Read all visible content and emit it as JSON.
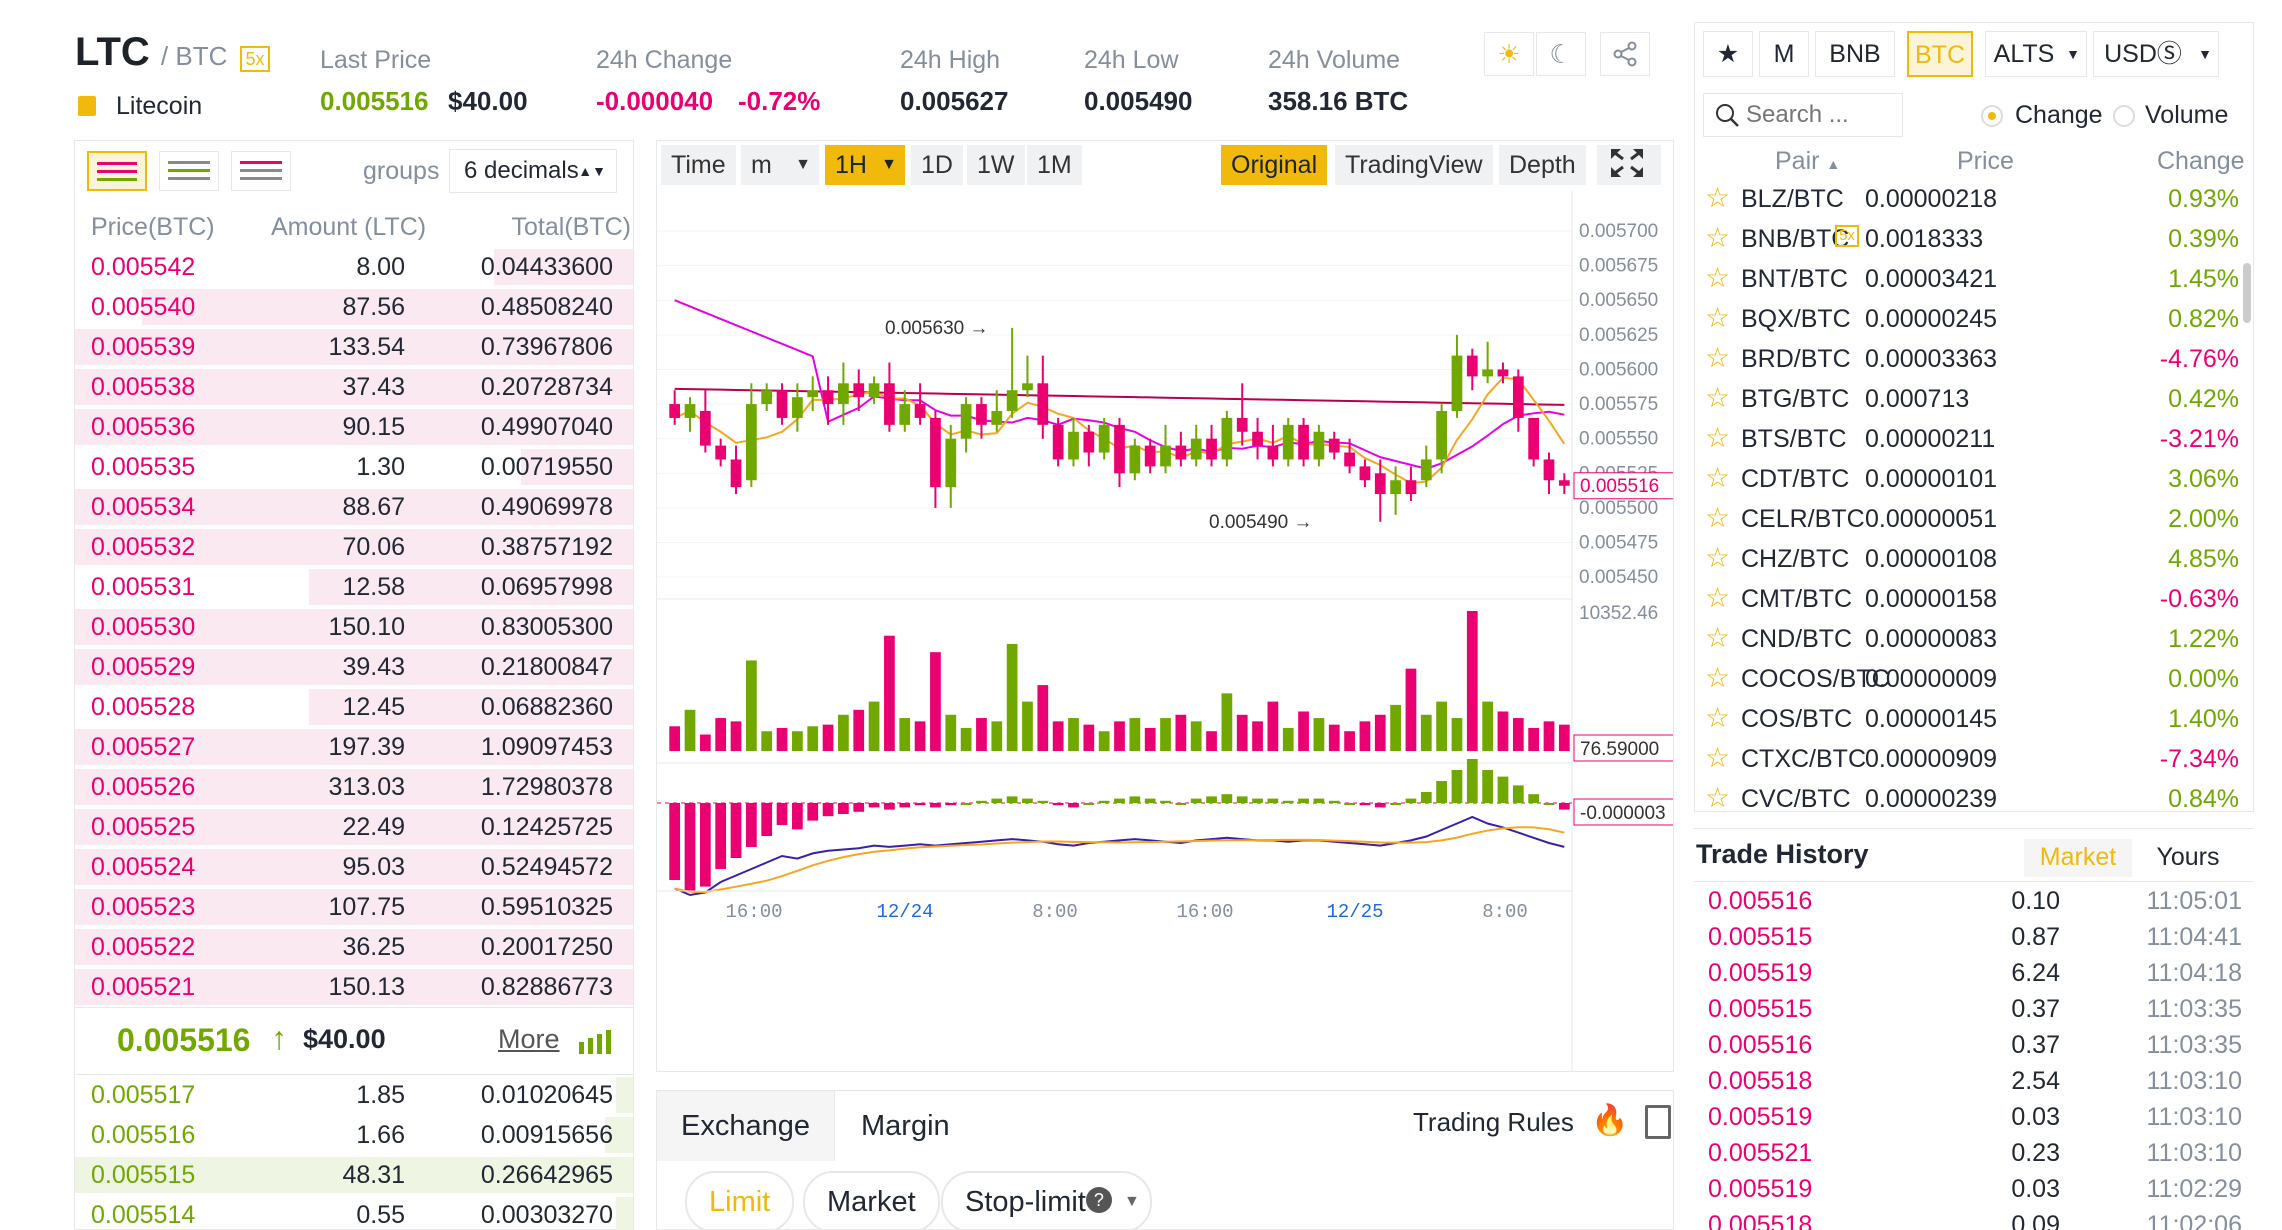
{
  "header": {
    "symbol": "LTC",
    "quote": "/ BTC",
    "leverage": "5x",
    "coin_name": "Litecoin",
    "last_price_label": "Last Price",
    "last_price": "0.005516",
    "last_price_usd": "$40.00",
    "change_label": "24h Change",
    "change_value": "-0.000040",
    "change_pct": "-0.72%",
    "high_label": "24h High",
    "high_value": "0.005627",
    "low_label": "24h Low",
    "low_value": "0.005490",
    "volume_label": "24h Volume",
    "volume_value": "358.16 BTC",
    "icons": [
      "sun-icon",
      "moon-icon",
      "share-icon"
    ]
  },
  "orderbook": {
    "groups_label": "groups",
    "decimals": "6 decimals",
    "col_price": "Price(BTC)",
    "col_amount": "Amount (LTC)",
    "col_total": "Total(BTC)",
    "asks": [
      {
        "price": "0.005542",
        "amount": "8.00",
        "total": "0.04433600",
        "depth": 0.25
      },
      {
        "price": "0.005540",
        "amount": "87.56",
        "total": "0.48508240",
        "depth": 0.88
      },
      {
        "price": "0.005539",
        "amount": "133.54",
        "total": "0.73967806",
        "depth": 1.0
      },
      {
        "price": "0.005538",
        "amount": "37.43",
        "total": "0.20728734",
        "depth": 1.0
      },
      {
        "price": "0.005536",
        "amount": "90.15",
        "total": "0.49907040",
        "depth": 1.0
      },
      {
        "price": "0.005535",
        "amount": "1.30",
        "total": "0.00719550",
        "depth": 0.2
      },
      {
        "price": "0.005534",
        "amount": "88.67",
        "total": "0.49069978",
        "depth": 1.0
      },
      {
        "price": "0.005532",
        "amount": "70.06",
        "total": "0.38757192",
        "depth": 1.0
      },
      {
        "price": "0.005531",
        "amount": "12.58",
        "total": "0.06957998",
        "depth": 0.58
      },
      {
        "price": "0.005530",
        "amount": "150.10",
        "total": "0.83005300",
        "depth": 1.0
      },
      {
        "price": "0.005529",
        "amount": "39.43",
        "total": "0.21800847",
        "depth": 1.0
      },
      {
        "price": "0.005528",
        "amount": "12.45",
        "total": "0.06882360",
        "depth": 0.58
      },
      {
        "price": "0.005527",
        "amount": "197.39",
        "total": "1.09097453",
        "depth": 1.0
      },
      {
        "price": "0.005526",
        "amount": "313.03",
        "total": "1.72980378",
        "depth": 1.0
      },
      {
        "price": "0.005525",
        "amount": "22.49",
        "total": "0.12425725",
        "depth": 1.0
      },
      {
        "price": "0.005524",
        "amount": "95.03",
        "total": "0.52494572",
        "depth": 1.0
      },
      {
        "price": "0.005523",
        "amount": "107.75",
        "total": "0.59510325",
        "depth": 1.0
      },
      {
        "price": "0.005522",
        "amount": "36.25",
        "total": "0.20017250",
        "depth": 1.0
      },
      {
        "price": "0.005521",
        "amount": "150.13",
        "total": "0.82886773",
        "depth": 1.0
      }
    ],
    "mid_price": "0.005516",
    "mid_arrow": "↑",
    "mid_usd": "$40.00",
    "more_label": "More",
    "bids": [
      {
        "price": "0.005517",
        "amount": "1.85",
        "total": "0.01020645",
        "depth": 0.03
      },
      {
        "price": "0.005516",
        "amount": "1.66",
        "total": "0.00915656",
        "depth": 0.05
      },
      {
        "price": "0.005515",
        "amount": "48.31",
        "total": "0.26642965",
        "depth": 1.0
      },
      {
        "price": "0.005514",
        "amount": "0.55",
        "total": "0.00303270",
        "depth": 0.03
      }
    ]
  },
  "chart": {
    "toolbar": {
      "time": "Time",
      "minute": "m",
      "interval": "1H",
      "d": "1D",
      "w": "1W",
      "mo": "1M",
      "original": "Original",
      "tradingview": "TradingView",
      "depth": "Depth"
    },
    "price_ticks": [
      "0.005700",
      "0.005675",
      "0.005650",
      "0.005625",
      "0.005600",
      "0.005575",
      "0.005550",
      "0.005525",
      "0.005500",
      "0.005475",
      "0.005450"
    ],
    "price_marker": "0.005516",
    "high_annotation": "0.005630",
    "low_annotation": "0.005490",
    "volume_max": "10352.46",
    "volume_marker": "76.59000",
    "macd_marker": "-0.000003",
    "x_ticks": [
      "16:00",
      "12/24",
      "8:00",
      "16:00",
      "12/25",
      "8:00"
    ],
    "accent": "#f0b90b",
    "up_color": "#70a800",
    "down_color": "#ea0070"
  },
  "chart_data": {
    "type": "candlestick",
    "ylim": [
      0.00544,
      0.0057
    ],
    "candles": [
      [
        0.005575,
        0.005565,
        0.005585,
        0.00556
      ],
      [
        0.005565,
        0.005575,
        0.00558,
        0.005555
      ],
      [
        0.00557,
        0.005545,
        0.005585,
        0.00554
      ],
      [
        0.005545,
        0.005535,
        0.00555,
        0.00553
      ],
      [
        0.005535,
        0.005515,
        0.005545,
        0.00551
      ],
      [
        0.00552,
        0.005575,
        0.00559,
        0.005515
      ],
      [
        0.005575,
        0.005585,
        0.00559,
        0.00557
      ],
      [
        0.005585,
        0.005565,
        0.00559,
        0.00556
      ],
      [
        0.005565,
        0.00558,
        0.00559,
        0.005555
      ],
      [
        0.00558,
        0.005585,
        0.005595,
        0.00557
      ],
      [
        0.005585,
        0.005575,
        0.005595,
        0.00556
      ],
      [
        0.005575,
        0.00559,
        0.005605,
        0.00556
      ],
      [
        0.00559,
        0.00558,
        0.0056,
        0.00557
      ],
      [
        0.00558,
        0.00559,
        0.005595,
        0.005575
      ],
      [
        0.00559,
        0.00556,
        0.005605,
        0.005555
      ],
      [
        0.00556,
        0.005575,
        0.005585,
        0.005555
      ],
      [
        0.005575,
        0.005565,
        0.00559,
        0.00556
      ],
      [
        0.005565,
        0.005515,
        0.00557,
        0.0055
      ],
      [
        0.005515,
        0.00555,
        0.00556,
        0.0055
      ],
      [
        0.00555,
        0.005575,
        0.00558,
        0.00554
      ],
      [
        0.005575,
        0.00556,
        0.00558,
        0.00555
      ],
      [
        0.00556,
        0.00557,
        0.005585,
        0.005555
      ],
      [
        0.00557,
        0.005585,
        0.00563,
        0.005565
      ],
      [
        0.005585,
        0.00559,
        0.00561,
        0.00558
      ],
      [
        0.00559,
        0.00556,
        0.00561,
        0.00555
      ],
      [
        0.00556,
        0.005535,
        0.005565,
        0.00553
      ],
      [
        0.005535,
        0.005555,
        0.005565,
        0.00553
      ],
      [
        0.005555,
        0.00554,
        0.00556,
        0.00553
      ],
      [
        0.00554,
        0.00556,
        0.005565,
        0.005535
      ],
      [
        0.00556,
        0.005525,
        0.005565,
        0.005515
      ],
      [
        0.005525,
        0.005545,
        0.00555,
        0.00552
      ],
      [
        0.005545,
        0.00553,
        0.00555,
        0.005525
      ],
      [
        0.00553,
        0.005545,
        0.00556,
        0.005525
      ],
      [
        0.005545,
        0.005535,
        0.005555,
        0.00553
      ],
      [
        0.005535,
        0.00555,
        0.00556,
        0.00553
      ],
      [
        0.00555,
        0.005535,
        0.00556,
        0.00553
      ],
      [
        0.005535,
        0.005565,
        0.00557,
        0.00553
      ],
      [
        0.005565,
        0.005555,
        0.00559,
        0.005545
      ],
      [
        0.005555,
        0.005545,
        0.005565,
        0.005535
      ],
      [
        0.005545,
        0.005535,
        0.00556,
        0.00553
      ],
      [
        0.005535,
        0.00556,
        0.005565,
        0.00553
      ],
      [
        0.00556,
        0.005535,
        0.005565,
        0.00553
      ],
      [
        0.005535,
        0.005555,
        0.00556,
        0.00553
      ],
      [
        0.00555,
        0.00554,
        0.005555,
        0.005535
      ],
      [
        0.00554,
        0.00553,
        0.00555,
        0.005525
      ],
      [
        0.00553,
        0.00552,
        0.005535,
        0.005515
      ],
      [
        0.005525,
        0.00551,
        0.005535,
        0.00549
      ],
      [
        0.00551,
        0.00552,
        0.00553,
        0.005495
      ],
      [
        0.00552,
        0.00551,
        0.00553,
        0.005505
      ],
      [
        0.00552,
        0.005535,
        0.005545,
        0.005515
      ],
      [
        0.005535,
        0.00557,
        0.005575,
        0.005525
      ],
      [
        0.00557,
        0.00561,
        0.005625,
        0.005565
      ],
      [
        0.00561,
        0.005595,
        0.005615,
        0.005585
      ],
      [
        0.005595,
        0.0056,
        0.00562,
        0.00559
      ],
      [
        0.0056,
        0.005595,
        0.005605,
        0.00559
      ],
      [
        0.005595,
        0.005565,
        0.0056,
        0.005555
      ],
      [
        0.005565,
        0.005535,
        0.005565,
        0.00553
      ],
      [
        0.005535,
        0.00552,
        0.00554,
        0.00551
      ],
      [
        0.00552,
        0.005516,
        0.005525,
        0.00551
      ]
    ],
    "volumes": [
      15,
      25,
      10,
      20,
      18,
      55,
      12,
      14,
      12,
      15,
      16,
      22,
      25,
      30,
      70,
      20,
      18,
      60,
      22,
      14,
      20,
      18,
      65,
      30,
      40,
      18,
      20,
      16,
      12,
      18,
      20,
      14,
      20,
      22,
      18,
      12,
      35,
      22,
      18,
      30,
      14,
      24,
      20,
      16,
      12,
      18,
      22,
      28,
      50,
      22,
      30,
      20,
      85,
      30,
      24,
      20,
      14,
      18,
      16
    ],
    "macd": [
      -35,
      -40,
      -38,
      -30,
      -25,
      -20,
      -15,
      -10,
      -12,
      -8,
      -6,
      -5,
      -4,
      -2,
      -3,
      -2,
      -1,
      -2,
      -1,
      0,
      1,
      2,
      3,
      2,
      1,
      -1,
      -2,
      0,
      1,
      2,
      3,
      2,
      1,
      0,
      2,
      3,
      4,
      3,
      2,
      2,
      1,
      2,
      2,
      1,
      0,
      -1,
      -2,
      0,
      2,
      5,
      10,
      15,
      20,
      15,
      12,
      8,
      4,
      0,
      -3
    ]
  },
  "exchange": {
    "tab_exchange": "Exchange",
    "tab_margin": "Margin",
    "trading_rules": "Trading Rules",
    "order_limit": "Limit",
    "order_market": "Market",
    "order_stop": "Stop-limit"
  },
  "markets": {
    "tab_m": "M",
    "tab_bnb": "BNB",
    "tab_btc": "BTC",
    "tab_alts": "ALTS",
    "tab_usd": "USDⓈ",
    "search_placeholder": "Search ...",
    "radio_change": "Change",
    "radio_volume": "Volume",
    "col_pair": "Pair",
    "col_price": "Price",
    "col_change": "Change",
    "leverage_badge": "5x",
    "rows": [
      {
        "pair": "BLZ/BTC",
        "price": "0.00000218",
        "change": "0.93%",
        "up": true
      },
      {
        "pair": "BNB/BTC",
        "price": "0.0018333",
        "change": "0.39%",
        "up": true,
        "lev": true
      },
      {
        "pair": "BNT/BTC",
        "price": "0.00003421",
        "change": "1.45%",
        "up": true
      },
      {
        "pair": "BQX/BTC",
        "price": "0.00000245",
        "change": "0.82%",
        "up": true
      },
      {
        "pair": "BRD/BTC",
        "price": "0.00003363",
        "change": "-4.76%",
        "up": false
      },
      {
        "pair": "BTG/BTC",
        "price": "0.000713",
        "change": "0.42%",
        "up": true
      },
      {
        "pair": "BTS/BTC",
        "price": "0.00000211",
        "change": "-3.21%",
        "up": false
      },
      {
        "pair": "CDT/BTC",
        "price": "0.00000101",
        "change": "3.06%",
        "up": true
      },
      {
        "pair": "CELR/BTC",
        "price": "0.00000051",
        "change": "2.00%",
        "up": true
      },
      {
        "pair": "CHZ/BTC",
        "price": "0.00000108",
        "change": "4.85%",
        "up": true
      },
      {
        "pair": "CMT/BTC",
        "price": "0.00000158",
        "change": "-0.63%",
        "up": false
      },
      {
        "pair": "CND/BTC",
        "price": "0.00000083",
        "change": "1.22%",
        "up": true
      },
      {
        "pair": "COCOS/BTC",
        "price": "0.00000009",
        "change": "0.00%",
        "up": true
      },
      {
        "pair": "COS/BTC",
        "price": "0.00000145",
        "change": "1.40%",
        "up": true
      },
      {
        "pair": "CTXC/BTC",
        "price": "0.00000909",
        "change": "-7.34%",
        "up": false
      },
      {
        "pair": "CVC/BTC",
        "price": "0.00000239",
        "change": "0.84%",
        "up": true
      }
    ]
  },
  "trade_history": {
    "title": "Trade History",
    "tab_market": "Market",
    "tab_yours": "Yours",
    "rows": [
      {
        "price": "0.005516",
        "amount": "0.10",
        "time": "11:05:01"
      },
      {
        "price": "0.005515",
        "amount": "0.87",
        "time": "11:04:41"
      },
      {
        "price": "0.005519",
        "amount": "6.24",
        "time": "11:04:18"
      },
      {
        "price": "0.005515",
        "amount": "0.37",
        "time": "11:03:35"
      },
      {
        "price": "0.005516",
        "amount": "0.37",
        "time": "11:03:35"
      },
      {
        "price": "0.005518",
        "amount": "2.54",
        "time": "11:03:10"
      },
      {
        "price": "0.005519",
        "amount": "0.03",
        "time": "11:03:10"
      },
      {
        "price": "0.005521",
        "amount": "0.23",
        "time": "11:03:10"
      },
      {
        "price": "0.005519",
        "amount": "0.03",
        "time": "11:02:29"
      },
      {
        "price": "0.005518",
        "amount": "0.09",
        "time": "11:02:06"
      }
    ]
  }
}
